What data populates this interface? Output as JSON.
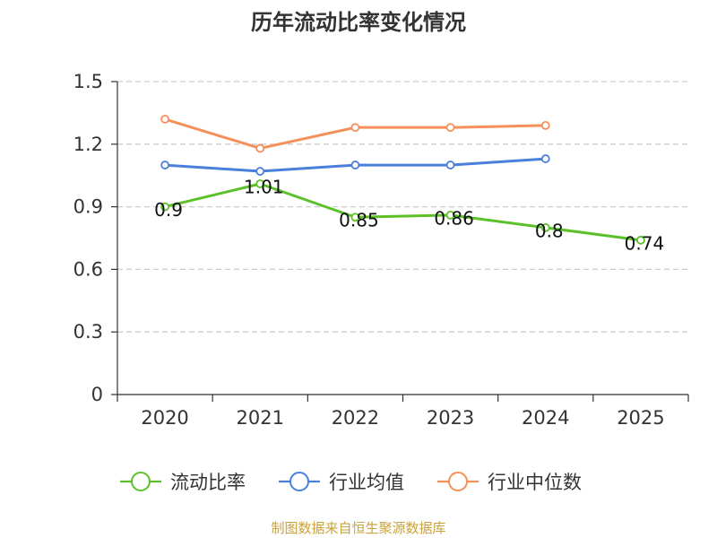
{
  "chart_data": {
    "type": "line",
    "title": "历年流动比率变化情况",
    "categories": [
      "2020",
      "2021",
      "2022",
      "2023",
      "2024",
      "2025"
    ],
    "ylim": [
      0,
      1.5
    ],
    "yticks": [
      "0",
      "0.3",
      "0.6",
      "0.9",
      "1.2",
      "1.5"
    ],
    "ytick_values": [
      0,
      0.3,
      0.6,
      0.9,
      1.2,
      1.5
    ],
    "grid": true,
    "legend_position": "bottom",
    "series": [
      {
        "name": "流动比率",
        "color": "#5cc129",
        "values": [
          0.9,
          1.01,
          0.85,
          0.86,
          0.8,
          0.74
        ],
        "labels": [
          "0.9",
          "1.01",
          "0.85",
          "0.86",
          "0.8",
          "0.74"
        ],
        "show_labels": true
      },
      {
        "name": "行业均值",
        "color": "#4a7fdc",
        "values": [
          1.1,
          1.07,
          1.1,
          1.1,
          1.13,
          null
        ],
        "show_labels": false
      },
      {
        "name": "行业中位数",
        "color": "#f5905a",
        "values": [
          1.32,
          1.18,
          1.28,
          1.28,
          1.29,
          null
        ],
        "show_labels": false
      }
    ]
  },
  "source": {
    "text": "制图数据来自恒生聚源数据库",
    "color": "#c9a23b"
  }
}
